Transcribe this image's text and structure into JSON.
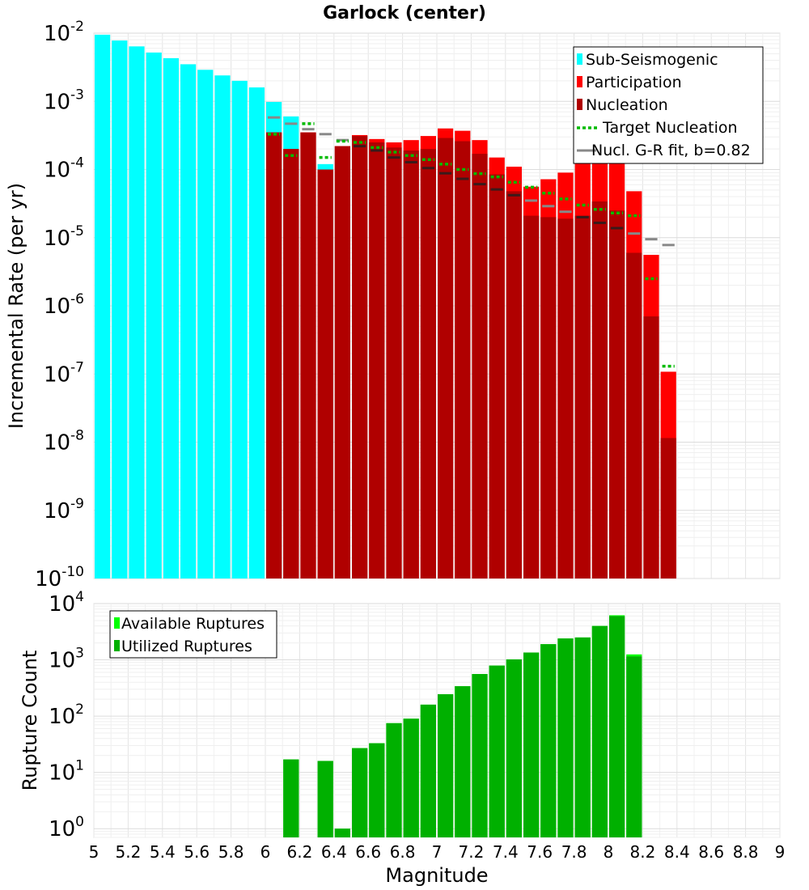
{
  "chart_data": [
    {
      "type": "bar",
      "title": "Garlock (center)",
      "xlabel": "",
      "ylabel": "Incremental Rate (per yr)",
      "xlim": [
        5,
        9
      ],
      "ylim": [
        1e-10,
        0.01
      ],
      "yscale": "log",
      "grid": true,
      "legend_position": "top-right",
      "bar_width": 0.1,
      "legend": [
        {
          "label": "Sub-Seismogenic",
          "color": "#00ffff",
          "kind": "bar"
        },
        {
          "label": "Participation",
          "color": "#ff0000",
          "kind": "bar"
        },
        {
          "label": "Nucleation",
          "color": "#b00000",
          "kind": "bar"
        },
        {
          "label": "Target Nucleation",
          "color": "#00bb00",
          "kind": "dotted-line"
        },
        {
          "label": "Nucl. G-R fit, b=0.82",
          "color": "#888888",
          "kind": "line"
        }
      ],
      "series": [
        {
          "name": "Sub-Seismogenic",
          "color": "#00ffff",
          "x": [
            5.05,
            5.15,
            5.25,
            5.35,
            5.45,
            5.55,
            5.65,
            5.75,
            5.85,
            5.95,
            6.05,
            6.15,
            6.35
          ],
          "values": [
            0.0095,
            0.0078,
            0.0064,
            0.0052,
            0.0043,
            0.0035,
            0.0029,
            0.0024,
            0.002,
            0.0016,
            0.00098,
            0.0006,
            0.00012
          ]
        },
        {
          "name": "Participation",
          "color": "#ff0000",
          "x": [
            6.05,
            6.15,
            6.25,
            6.35,
            6.45,
            6.55,
            6.65,
            6.75,
            6.85,
            6.95,
            7.05,
            7.15,
            7.25,
            7.35,
            7.45,
            7.55,
            7.65,
            7.75,
            7.85,
            7.95,
            8.05,
            8.15,
            8.25,
            8.35
          ],
          "values": [
            0.00035,
            0.0002,
            0.00035,
            0.0001,
            0.00022,
            0.00032,
            0.00028,
            0.00025,
            0.00027,
            0.00031,
            0.0004,
            0.00037,
            0.00027,
            0.00015,
            0.00011,
            5.6e-05,
            7.2e-05,
            9e-05,
            0.00021,
            0.00021,
            0.0002,
            4.8e-05,
            5.6e-06,
            1.08e-07
          ]
        },
        {
          "name": "Nucleation",
          "color": "#b00000",
          "x": [
            6.05,
            6.15,
            6.25,
            6.35,
            6.45,
            6.55,
            6.65,
            6.75,
            6.85,
            6.95,
            7.05,
            7.15,
            7.25,
            7.35,
            7.45,
            7.55,
            7.65,
            7.75,
            7.85,
            7.95,
            8.05,
            8.15,
            8.25,
            8.35
          ],
          "values": [
            0.00035,
            0.0002,
            0.00035,
            0.0001,
            0.00022,
            0.00031,
            0.00025,
            0.00021,
            0.00019,
            0.0002,
            0.00029,
            0.00026,
            0.00017,
            8.5e-05,
            4.8e-05,
            2.1e-05,
            2e-05,
            1.9e-05,
            2.1e-05,
            3.4e-05,
            2.5e-05,
            6e-06,
            7e-07,
            1.15e-08
          ]
        },
        {
          "name": "Target Nucleation",
          "color": "#00bb00",
          "x": [
            6.05,
            6.15,
            6.25,
            6.35,
            6.45,
            6.55,
            6.65,
            6.75,
            6.85,
            6.95,
            7.05,
            7.15,
            7.25,
            7.35,
            7.45,
            7.55,
            7.65,
            7.75,
            7.85,
            7.95,
            8.05,
            8.15,
            8.25,
            8.35
          ],
          "values": [
            0.00033,
            0.00016,
            0.00047,
            0.00015,
            0.00026,
            0.00025,
            0.00021,
            0.00018,
            0.00016,
            0.00014,
            0.00012,
            0.0001,
            8.7e-05,
            7.8e-05,
            6.5e-05,
            5.5e-05,
            4.5e-05,
            3.7e-05,
            3e-05,
            2.6e-05,
            2.3e-05,
            2.1e-05,
            2.5e-06,
            1.3e-07
          ]
        },
        {
          "name": "Nucl. G-R fit, b=0.82",
          "color": "#888888",
          "x": [
            6.05,
            6.15,
            6.25,
            6.35,
            6.45,
            6.55,
            6.65,
            6.75,
            6.85,
            6.95,
            7.05,
            7.15,
            7.25,
            7.35,
            7.45,
            7.55,
            7.65,
            7.75,
            7.85,
            7.95,
            8.05,
            8.15,
            8.25,
            8.35
          ],
          "values": [
            0.00058,
            0.00047,
            0.00039,
            0.00033,
            0.00027,
            0.00022,
            0.00019,
            0.00015,
            0.000128,
            0.000105,
            8.8e-05,
            7.3e-05,
            6.1e-05,
            5.1e-05,
            4.2e-05,
            3.5e-05,
            2.9e-05,
            2.4e-05,
            2e-05,
            1.65e-05,
            1.38e-05,
            1.15e-05,
            9.5e-06,
            7.8e-06
          ]
        }
      ],
      "yticks": [
        {
          "base": "10",
          "exp": "-2",
          "value": 0.01
        },
        {
          "base": "10",
          "exp": "-3",
          "value": 0.001
        },
        {
          "base": "10",
          "exp": "-4",
          "value": 0.0001
        },
        {
          "base": "10",
          "exp": "-5",
          "value": 1e-05
        },
        {
          "base": "10",
          "exp": "-6",
          "value": 1e-06
        },
        {
          "base": "10",
          "exp": "-7",
          "value": 1e-07
        },
        {
          "base": "10",
          "exp": "-8",
          "value": 1e-08
        },
        {
          "base": "10",
          "exp": "-9",
          "value": 1e-09
        },
        {
          "base": "10",
          "exp": "-10",
          "value": 1e-10
        }
      ]
    },
    {
      "type": "bar",
      "title": "",
      "xlabel": "Magnitude",
      "ylabel": "Rupture Count",
      "xlim": [
        5,
        9
      ],
      "ylim": [
        0.7,
        10000
      ],
      "yscale": "log",
      "grid": true,
      "legend_position": "top-left",
      "bar_width": 0.1,
      "legend": [
        {
          "label": "Available Ruptures",
          "color": "#00ff00",
          "kind": "bar"
        },
        {
          "label": "Utilized Ruptures",
          "color": "#00b000",
          "kind": "bar"
        }
      ],
      "series": [
        {
          "name": "Available Ruptures",
          "color": "#00ff00",
          "x": [
            6.15,
            6.35,
            6.45,
            6.55,
            6.65,
            6.75,
            6.85,
            6.95,
            7.05,
            7.15,
            7.25,
            7.35,
            7.45,
            7.55,
            7.65,
            7.75,
            7.85,
            7.95,
            8.05,
            8.15
          ],
          "values": [
            17,
            16,
            1,
            27,
            33,
            75,
            90,
            160,
            245,
            340,
            560,
            790,
            1020,
            1350,
            1900,
            2400,
            2500,
            4000,
            6200,
            1250
          ]
        },
        {
          "name": "Utilized Ruptures",
          "color": "#00b000",
          "x": [
            6.15,
            6.35,
            6.45,
            6.55,
            6.65,
            6.75,
            6.85,
            6.95,
            7.05,
            7.15,
            7.25,
            7.35,
            7.45,
            7.55,
            7.65,
            7.75,
            7.85,
            7.95,
            8.05,
            8.15
          ],
          "values": [
            17,
            16,
            1,
            27,
            33,
            75,
            90,
            160,
            245,
            340,
            560,
            790,
            1020,
            1350,
            1900,
            2400,
            2500,
            4000,
            6000,
            1150
          ]
        }
      ],
      "yticks": [
        {
          "base": "10",
          "exp": "4",
          "value": 10000
        },
        {
          "base": "10",
          "exp": "3",
          "value": 1000
        },
        {
          "base": "10",
          "exp": "2",
          "value": 100
        },
        {
          "base": "10",
          "exp": "1",
          "value": 10
        },
        {
          "base": "10",
          "exp": "0",
          "value": 1
        }
      ],
      "xticks": [
        "5",
        "5.2",
        "5.4",
        "5.6",
        "5.8",
        "6",
        "6.2",
        "6.4",
        "6.6",
        "6.8",
        "7",
        "7.2",
        "7.4",
        "7.6",
        "7.8",
        "8",
        "8.2",
        "8.4",
        "8.6",
        "8.8",
        "9"
      ]
    }
  ]
}
